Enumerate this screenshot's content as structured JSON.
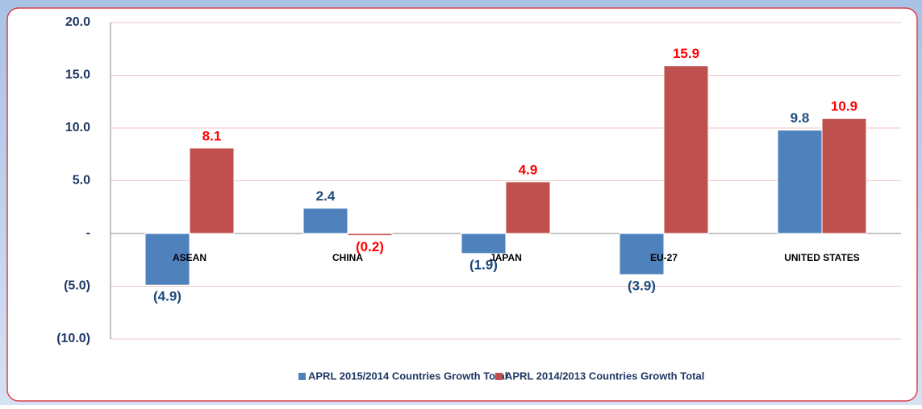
{
  "chart_data": {
    "type": "bar",
    "categories": [
      "ASEAN",
      "CHINA",
      "JAPAN",
      "EU-27",
      "UNITED STATES"
    ],
    "series": [
      {
        "name": "APRL 2015/2014 Countries Growth Total",
        "color": "#4f81bd",
        "values": [
          -4.9,
          2.4,
          -1.9,
          -3.9,
          9.8
        ],
        "value_labels": [
          "(4.9)",
          "2.4",
          "(1.9)",
          "(3.9)",
          "9.8"
        ],
        "label_color": "#1f497d"
      },
      {
        "name": "APRL 2014/2013 Countries Growth Total",
        "color": "#c0504d",
        "values": [
          8.1,
          -0.2,
          4.9,
          15.9,
          10.9
        ],
        "value_labels": [
          "8.1",
          "(0.2)",
          "4.9",
          "15.9",
          "10.9"
        ],
        "label_color": "#ff0000"
      }
    ],
    "ylim": [
      -10,
      20
    ],
    "yticks": [
      {
        "value": -10,
        "label": "(10.0)"
      },
      {
        "value": -5,
        "label": "(5.0)"
      },
      {
        "value": 0,
        "label": "-"
      },
      {
        "value": 5,
        "label": "5.0"
      },
      {
        "value": 10,
        "label": "10.0"
      },
      {
        "value": 15,
        "label": "15.0"
      },
      {
        "value": 20,
        "label": "20.0"
      }
    ],
    "grid": true,
    "legend": "bottom"
  }
}
